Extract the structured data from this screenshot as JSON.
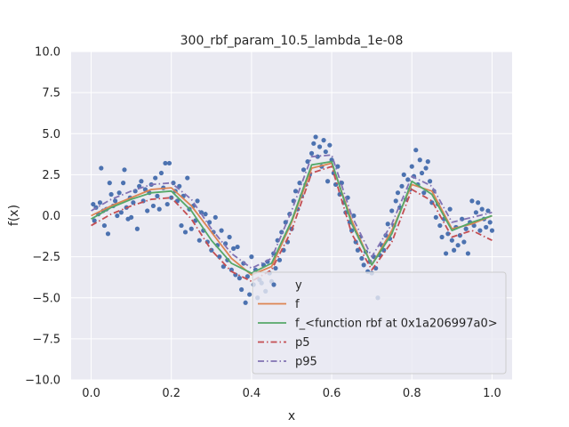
{
  "chart_data": {
    "type": "scatter",
    "title": "300_rbf_param_10.5_lambda_1e-08",
    "xlabel": "x",
    "ylabel": "f(x)",
    "xlim": [
      -0.05,
      1.05
    ],
    "ylim": [
      -10.0,
      10.0
    ],
    "x_ticks": [
      0.0,
      0.2,
      0.4,
      0.6,
      0.8,
      1.0
    ],
    "x_tick_labels": [
      "0.0",
      "0.2",
      "0.4",
      "0.6",
      "0.8",
      "1.0"
    ],
    "y_ticks": [
      -10.0,
      -7.5,
      -5.0,
      -2.5,
      0.0,
      2.5,
      5.0,
      7.5,
      10.0
    ],
    "y_tick_labels": [
      "−10.0",
      "−7.5",
      "−5.0",
      "−2.5",
      "0.0",
      "2.5",
      "5.0",
      "7.5",
      "10.0"
    ],
    "grid": true,
    "legend_position": "lower-right",
    "colors": {
      "background": "#eaeaf2",
      "grid": "#ffffff",
      "y": "#4c72b0",
      "f": "#dd8452",
      "f_rbf": "#55a868",
      "p5": "#c44e52",
      "p95": "#8172b3"
    },
    "series": [
      {
        "name": "y",
        "kind": "scatter",
        "points": [
          [
            0.005,
            0.7
          ],
          [
            0.008,
            -0.3
          ],
          [
            0.012,
            0.5
          ],
          [
            0.018,
            0.1
          ],
          [
            0.022,
            0.8
          ],
          [
            0.025,
            2.9
          ],
          [
            0.03,
            0.3
          ],
          [
            0.033,
            -0.6
          ],
          [
            0.038,
            0.4
          ],
          [
            0.042,
            -1.1
          ],
          [
            0.046,
            2.0
          ],
          [
            0.05,
            1.3
          ],
          [
            0.055,
            0.6
          ],
          [
            0.06,
            0.9
          ],
          [
            0.065,
            0.0
          ],
          [
            0.07,
            1.4
          ],
          [
            0.075,
            0.2
          ],
          [
            0.08,
            2.0
          ],
          [
            0.083,
            2.8
          ],
          [
            0.088,
            0.5
          ],
          [
            0.092,
            -0.2
          ],
          [
            0.097,
            1.1
          ],
          [
            0.1,
            -0.1
          ],
          [
            0.105,
            0.8
          ],
          [
            0.11,
            1.5
          ],
          [
            0.115,
            -0.8
          ],
          [
            0.12,
            1.8
          ],
          [
            0.125,
            2.1
          ],
          [
            0.13,
            0.9
          ],
          [
            0.135,
            1.6
          ],
          [
            0.14,
            0.3
          ],
          [
            0.145,
            1.4
          ],
          [
            0.15,
            1.9
          ],
          [
            0.155,
            0.6
          ],
          [
            0.16,
            2.3
          ],
          [
            0.165,
            1.2
          ],
          [
            0.17,
            0.4
          ],
          [
            0.175,
            2.6
          ],
          [
            0.18,
            1.7
          ],
          [
            0.185,
            3.2
          ],
          [
            0.19,
            0.7
          ],
          [
            0.195,
            3.2
          ],
          [
            0.2,
            1.1
          ],
          [
            0.205,
            2.0
          ],
          [
            0.21,
            1.5
          ],
          [
            0.215,
            0.9
          ],
          [
            0.22,
            1.8
          ],
          [
            0.225,
            -0.6
          ],
          [
            0.23,
            1.2
          ],
          [
            0.235,
            -1.0
          ],
          [
            0.24,
            2.3
          ],
          [
            0.245,
            0.4
          ],
          [
            0.25,
            -0.8
          ],
          [
            0.255,
            0.6
          ],
          [
            0.26,
            -0.3
          ],
          [
            0.265,
            0.9
          ],
          [
            0.27,
            -1.5
          ],
          [
            0.275,
            0.2
          ],
          [
            0.28,
            -0.9
          ],
          [
            0.285,
            0.1
          ],
          [
            0.29,
            -1.6
          ],
          [
            0.295,
            -0.4
          ],
          [
            0.3,
            -2.1
          ],
          [
            0.305,
            -1.0
          ],
          [
            0.31,
            -0.1
          ],
          [
            0.315,
            -1.8
          ],
          [
            0.32,
            -2.5
          ],
          [
            0.325,
            -0.9
          ],
          [
            0.33,
            -3.1
          ],
          [
            0.335,
            -1.7
          ],
          [
            0.34,
            -2.7
          ],
          [
            0.345,
            -1.3
          ],
          [
            0.35,
            -3.3
          ],
          [
            0.355,
            -2.0
          ],
          [
            0.36,
            -3.6
          ],
          [
            0.365,
            -1.9
          ],
          [
            0.37,
            -3.8
          ],
          [
            0.375,
            -4.5
          ],
          [
            0.38,
            -2.9
          ],
          [
            0.385,
            -5.3
          ],
          [
            0.39,
            -3.7
          ],
          [
            0.395,
            -4.8
          ],
          [
            0.4,
            -2.5
          ],
          [
            0.405,
            -4.2
          ],
          [
            0.41,
            -3.3
          ],
          [
            0.415,
            -5.0
          ],
          [
            0.42,
            -3.9
          ],
          [
            0.425,
            -4.1
          ],
          [
            0.43,
            -3.0
          ],
          [
            0.435,
            -4.6
          ],
          [
            0.44,
            -2.8
          ],
          [
            0.445,
            -3.5
          ],
          [
            0.45,
            -4.0
          ],
          [
            0.455,
            -2.3
          ],
          [
            0.46,
            -3.2
          ],
          [
            0.465,
            -1.5
          ],
          [
            0.47,
            -2.7
          ],
          [
            0.475,
            -1.0
          ],
          [
            0.48,
            -2.1
          ],
          [
            0.485,
            -0.4
          ],
          [
            0.49,
            -1.6
          ],
          [
            0.495,
            0.1
          ],
          [
            0.5,
            -0.8
          ],
          [
            0.505,
            0.9
          ],
          [
            0.51,
            1.5
          ],
          [
            0.515,
            0.4
          ],
          [
            0.52,
            2.0
          ],
          [
            0.525,
            1.2
          ],
          [
            0.53,
            2.8
          ],
          [
            0.535,
            1.9
          ],
          [
            0.54,
            3.3
          ],
          [
            0.545,
            2.5
          ],
          [
            0.55,
            3.8
          ],
          [
            0.555,
            4.4
          ],
          [
            0.56,
            4.8
          ],
          [
            0.565,
            3.6
          ],
          [
            0.57,
            4.2
          ],
          [
            0.575,
            3.0
          ],
          [
            0.58,
            4.6
          ],
          [
            0.585,
            3.9
          ],
          [
            0.59,
            2.1
          ],
          [
            0.595,
            4.3
          ],
          [
            0.6,
            3.4
          ],
          [
            0.605,
            2.6
          ],
          [
            0.61,
            1.9
          ],
          [
            0.615,
            3.0
          ],
          [
            0.62,
            1.3
          ],
          [
            0.625,
            2.0
          ],
          [
            0.63,
            0.8
          ],
          [
            0.635,
            0.2
          ],
          [
            0.64,
            1.1
          ],
          [
            0.645,
            -0.4
          ],
          [
            0.65,
            -0.9
          ],
          [
            0.655,
            0.0
          ],
          [
            0.66,
            -1.6
          ],
          [
            0.665,
            -2.1
          ],
          [
            0.67,
            -1.3
          ],
          [
            0.675,
            -2.6
          ],
          [
            0.68,
            -3.0
          ],
          [
            0.685,
            -2.2
          ],
          [
            0.69,
            -3.4
          ],
          [
            0.695,
            -2.8
          ],
          [
            0.7,
            -3.5
          ],
          [
            0.705,
            -2.5
          ],
          [
            0.71,
            -3.2
          ],
          [
            0.715,
            -5.0
          ],
          [
            0.72,
            -2.4
          ],
          [
            0.725,
            -1.8
          ],
          [
            0.73,
            -2.1
          ],
          [
            0.735,
            -1.2
          ],
          [
            0.74,
            -0.5
          ],
          [
            0.745,
            -1.4
          ],
          [
            0.75,
            0.3
          ],
          [
            0.755,
            -0.6
          ],
          [
            0.76,
            0.9
          ],
          [
            0.765,
            1.4
          ],
          [
            0.77,
            0.5
          ],
          [
            0.775,
            1.8
          ],
          [
            0.78,
            2.5
          ],
          [
            0.785,
            1.0
          ],
          [
            0.79,
            2.2
          ],
          [
            0.795,
            1.6
          ],
          [
            0.8,
            3.0
          ],
          [
            0.805,
            2.4
          ],
          [
            0.81,
            4.0
          ],
          [
            0.815,
            1.9
          ],
          [
            0.82,
            3.4
          ],
          [
            0.825,
            2.6
          ],
          [
            0.83,
            1.4
          ],
          [
            0.835,
            2.9
          ],
          [
            0.84,
            3.3
          ],
          [
            0.845,
            2.1
          ],
          [
            0.85,
            0.8
          ],
          [
            0.855,
            1.5
          ],
          [
            0.86,
            -0.1
          ],
          [
            0.865,
            0.7
          ],
          [
            0.87,
            -0.6
          ],
          [
            0.875,
            -1.3
          ],
          [
            0.88,
            -0.2
          ],
          [
            0.885,
            -2.3
          ],
          [
            0.89,
            -1.1
          ],
          [
            0.895,
            0.4
          ],
          [
            0.9,
            -1.5
          ],
          [
            0.905,
            -2.1
          ],
          [
            0.91,
            -0.7
          ],
          [
            0.915,
            -1.8
          ],
          [
            0.92,
            -1.2
          ],
          [
            0.925,
            -0.2
          ],
          [
            0.93,
            -1.6
          ],
          [
            0.935,
            -0.8
          ],
          [
            0.94,
            -2.3
          ],
          [
            0.945,
            -0.4
          ],
          [
            0.95,
            0.9
          ],
          [
            0.955,
            -0.6
          ],
          [
            0.96,
            0.2
          ],
          [
            0.965,
            0.8
          ],
          [
            0.97,
            -0.9
          ],
          [
            0.975,
            0.4
          ],
          [
            0.98,
            -0.2
          ],
          [
            0.985,
            -0.7
          ],
          [
            0.99,
            0.3
          ],
          [
            0.995,
            -0.4
          ],
          [
            1.0,
            -0.9
          ]
        ]
      },
      {
        "name": "f",
        "kind": "line",
        "style": "solid",
        "x": [
          0.0,
          0.05,
          0.1,
          0.15,
          0.2,
          0.25,
          0.3,
          0.35,
          0.4,
          0.45,
          0.5,
          0.55,
          0.6,
          0.65,
          0.7,
          0.75,
          0.8,
          0.85,
          0.9,
          0.95,
          1.0
        ],
        "y": [
          0.0,
          0.6,
          1.1,
          1.6,
          1.7,
          0.6,
          -1.0,
          -2.6,
          -3.6,
          -3.1,
          -0.4,
          2.9,
          3.2,
          -0.3,
          -3.0,
          -0.9,
          1.9,
          1.5,
          -0.8,
          -0.5,
          0.0
        ]
      },
      {
        "name": "f_<function rbf at 0x1a206997a0>",
        "kind": "line",
        "style": "solid",
        "x": [
          0.0,
          0.05,
          0.1,
          0.15,
          0.2,
          0.25,
          0.3,
          0.35,
          0.4,
          0.45,
          0.5,
          0.55,
          0.6,
          0.65,
          0.7,
          0.75,
          0.8,
          0.85,
          0.9,
          0.95,
          1.0
        ],
        "y": [
          -0.2,
          0.5,
          1.0,
          1.4,
          1.5,
          0.3,
          -1.5,
          -2.9,
          -3.5,
          -2.9,
          -0.3,
          3.1,
          3.3,
          -0.5,
          -3.0,
          -1.1,
          2.1,
          1.3,
          -0.9,
          -0.4,
          0.0
        ]
      },
      {
        "name": "p5",
        "kind": "line",
        "style": "dashdot",
        "x": [
          0.0,
          0.05,
          0.1,
          0.15,
          0.2,
          0.25,
          0.3,
          0.35,
          0.4,
          0.45,
          0.5,
          0.55,
          0.6,
          0.65,
          0.7,
          0.75,
          0.8,
          0.85,
          0.9,
          0.95,
          1.0
        ],
        "y": [
          -0.6,
          0.1,
          0.6,
          1.0,
          1.1,
          -0.2,
          -2.1,
          -3.4,
          -4.0,
          -3.3,
          -0.9,
          2.6,
          3.0,
          -1.1,
          -3.3,
          -1.6,
          1.6,
          0.9,
          -1.3,
          -0.9,
          -1.5
        ]
      },
      {
        "name": "p95",
        "kind": "line",
        "style": "dashdot",
        "x": [
          0.0,
          0.05,
          0.1,
          0.15,
          0.2,
          0.25,
          0.3,
          0.35,
          0.4,
          0.45,
          0.5,
          0.55,
          0.6,
          0.65,
          0.7,
          0.75,
          0.8,
          0.85,
          0.9,
          0.95,
          1.0
        ],
        "y": [
          0.3,
          1.0,
          1.5,
          1.9,
          2.0,
          1.0,
          -0.8,
          -2.3,
          -3.2,
          -2.6,
          0.3,
          3.6,
          3.7,
          0.0,
          -2.5,
          -0.5,
          2.4,
          1.8,
          -0.4,
          -0.1,
          0.2
        ]
      }
    ]
  }
}
